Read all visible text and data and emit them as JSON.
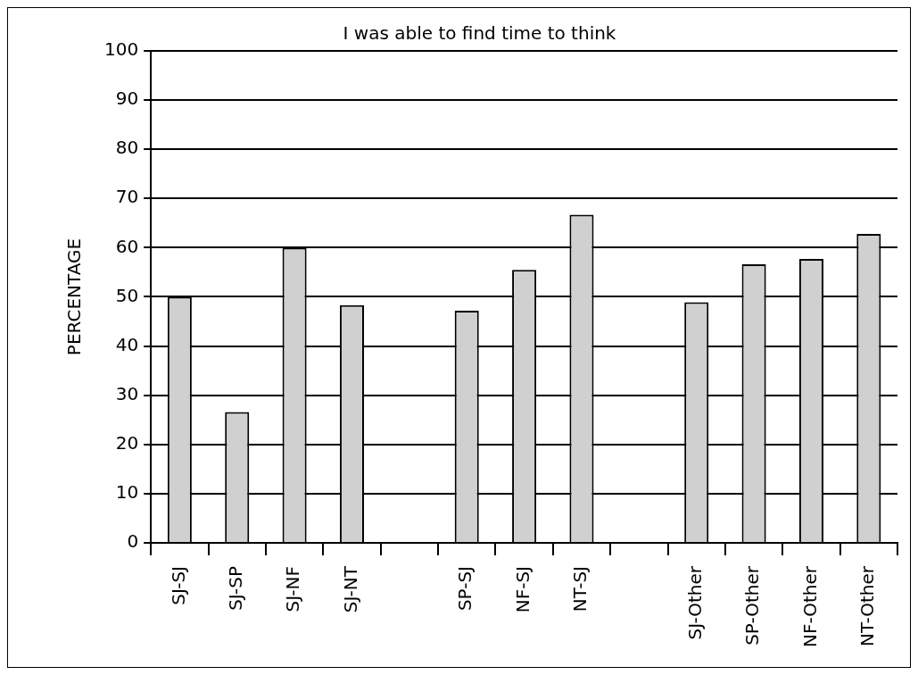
{
  "chart_data": {
    "type": "bar",
    "title": "I was able to find time to think",
    "ylabel": "PERCENTAGE",
    "categories": [
      "SJ-SJ",
      "SJ-SP",
      "SJ-NF",
      "SJ-NT",
      null,
      "SP-SJ",
      "NF-SJ",
      "NT-SJ",
      null,
      "SJ-Other",
      "SP-Other",
      "NF-Other",
      "NT-Other"
    ],
    "values": [
      50,
      26.6,
      60,
      48.3,
      null,
      47.2,
      55.5,
      66.7,
      null,
      48.9,
      56.6,
      57.7,
      62.8
    ],
    "color": "#d0d0d0",
    "ylim": [
      0,
      100
    ],
    "yticks": [
      0,
      10,
      20,
      30,
      40,
      50,
      60,
      70,
      80,
      90,
      100
    ],
    "grid": "y",
    "legend": false
  }
}
